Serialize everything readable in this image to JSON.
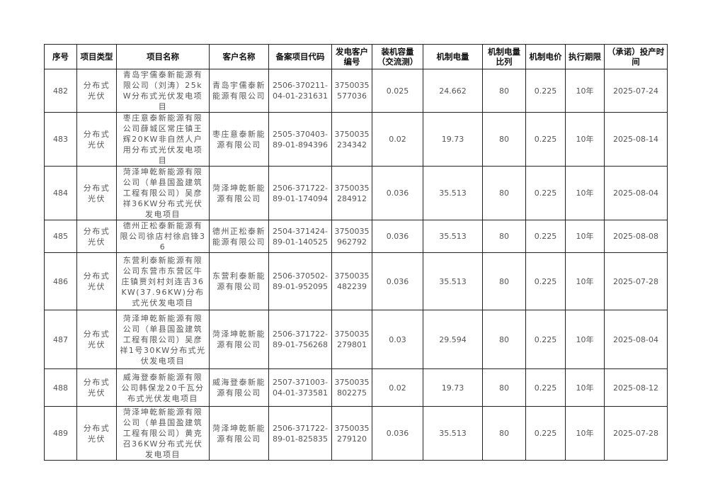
{
  "headers": [
    "序号",
    "项目类型",
    "项目名称",
    "客户名称",
    "备案项目代码",
    "发电客户编号",
    "装机容量（交流测）",
    "机制电量",
    "机制电量比列",
    "机制电价",
    "执行期限",
    "（承诺）投产时间"
  ],
  "rows": [
    {
      "no": "482",
      "type": "分布式光伏",
      "name": "青岛宇儒泰新能源有限公司（刘涛）25kW分布式光伏发电项目",
      "customer": "青岛宇儒泰新能源有限公司",
      "code": "2506-370211-04-01-231631",
      "account": "3750035577036",
      "capacity": "0.025",
      "energy": "24.662",
      "ratio": "80",
      "price": "0.225",
      "term": "10年",
      "date": "2025-07-24"
    },
    {
      "no": "483",
      "type": "分布式光伏",
      "name": "枣庄意泰新能源有限公司薛城区常庄镇王辉20KW非自然人户用分布式光伏发电项目",
      "customer": "枣庄意泰新能源有限公司",
      "code": "2505-370403-89-01-894396",
      "account": "3750035234342",
      "capacity": "0.02",
      "energy": "19.73",
      "ratio": "80",
      "price": "0.225",
      "term": "10年",
      "date": "2025-08-14"
    },
    {
      "no": "484",
      "type": "分布式光伏",
      "name": "菏泽坤乾新能源有限公司（单县国盈建筑工程有限公司）吴彦祥36KW分布式光伏发电项目",
      "customer": "菏泽坤乾新能源有限公司",
      "code": "2506-371722-89-01-174094",
      "account": "3750035284912",
      "capacity": "0.036",
      "energy": "35.513",
      "ratio": "80",
      "price": "0.225",
      "term": "10年",
      "date": "2025-08-04"
    },
    {
      "no": "485",
      "type": "分布式光伏",
      "name": "德州正松泰新能源有限公司徐店村徐启锋36",
      "customer": "德州正松泰新能源有限公司",
      "code": "2504-371424-89-01-140525",
      "account": "3750035962792",
      "capacity": "0.036",
      "energy": "35.513",
      "ratio": "80",
      "price": "0.225",
      "term": "10年",
      "date": "2025-08-08"
    },
    {
      "no": "486",
      "type": "分布式光伏",
      "name": "东营利泰新能源有限公司东营市东营区牛庄镇贾刘村刘连吉36KW(37.96KW)分布式光伏发电项目",
      "customer": "东营利泰新能源有限公司",
      "code": "2506-370502-89-01-952095",
      "account": "3750035482239",
      "capacity": "0.036",
      "energy": "35.513",
      "ratio": "80",
      "price": "0.225",
      "term": "10年",
      "date": "2025-07-28"
    },
    {
      "no": "487",
      "type": "分布式光伏",
      "name": "菏泽坤乾新能源有限公司（单县国盈建筑工程有限公司）吴彦祥1号30KW分布式光伏发电项目",
      "customer": "菏泽坤乾新能源有限公司",
      "code": "2506-371722-89-01-756268",
      "account": "3750035279801",
      "capacity": "0.03",
      "energy": "29.594",
      "ratio": "80",
      "price": "0.225",
      "term": "10年",
      "date": "2025-08-04"
    },
    {
      "no": "488",
      "type": "分布式光伏",
      "name": "威海登泰新能源有限公司韩保龙20千瓦分布式光伏发电项目",
      "customer": "威海登泰新能源有限公司",
      "code": "2507-371003-04-01-373581",
      "account": "3750035802275",
      "capacity": "0.02",
      "energy": "19.73",
      "ratio": "80",
      "price": "0.225",
      "term": "10年",
      "date": "2025-08-12"
    },
    {
      "no": "489",
      "type": "分布式光伏",
      "name": "菏泽坤乾新能源有限公司（单县国盈建筑工程有限公司）黄克召36KW分布式光伏发电项目",
      "customer": "菏泽坤乾新能源有限公司",
      "code": "2506-371722-89-01-825835",
      "account": "3750035279120",
      "capacity": "0.036",
      "energy": "35.513",
      "ratio": "80",
      "price": "0.225",
      "term": "10年",
      "date": "2025-07-28"
    }
  ]
}
